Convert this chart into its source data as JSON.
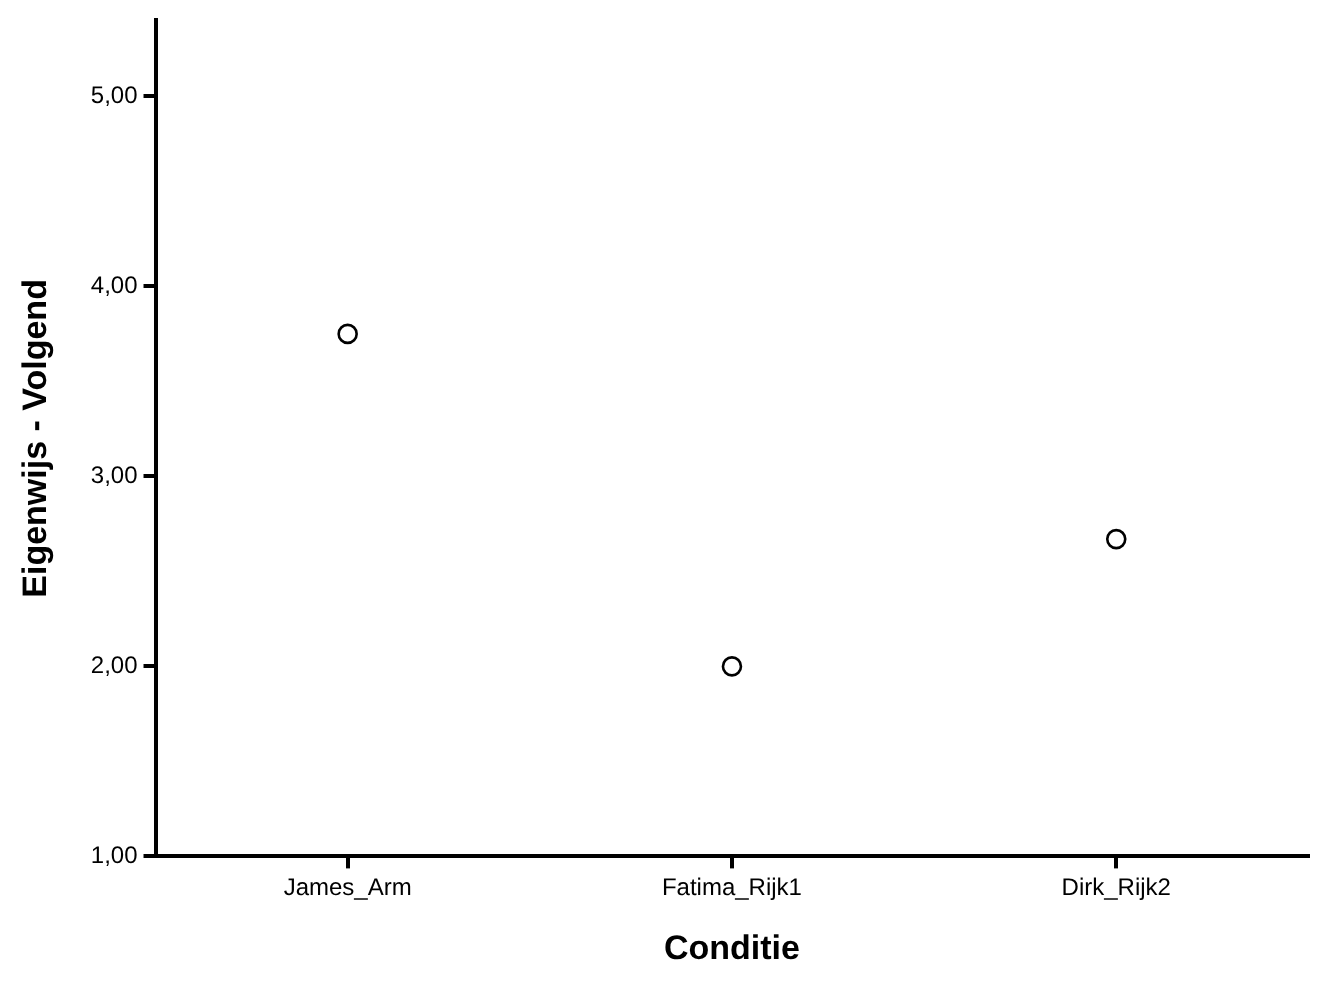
{
  "chart_data": {
    "type": "scatter",
    "xlabel": "Conditie",
    "ylabel": "Eigenwijs - Volgend",
    "categories": [
      "James_Arm",
      "Fatima_Rijk1",
      "Dirk_Rijk2"
    ],
    "series": [
      {
        "color": "#000000",
        "values": [
          3.75,
          2.0,
          2.67
        ]
      }
    ],
    "ylim": [
      1,
      5.4
    ],
    "yticks": [
      {
        "value": 1,
        "label": "1,00"
      },
      {
        "value": 2,
        "label": "2,00"
      },
      {
        "value": 3,
        "label": "3,00"
      },
      {
        "value": 4,
        "label": "4,00"
      },
      {
        "value": 5,
        "label": "5,00"
      }
    ],
    "grid": false,
    "legend": false,
    "marker": "circle"
  }
}
